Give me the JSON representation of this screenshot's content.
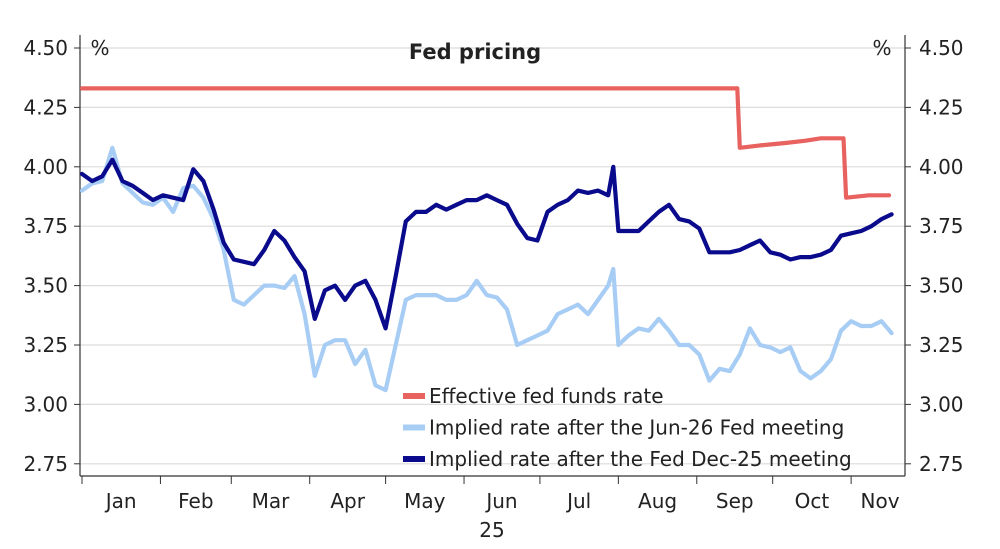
{
  "chart_data": {
    "type": "line",
    "title": "Fed pricing",
    "ylabel_left": "%",
    "ylabel_right": "%",
    "ylim": [
      2.7,
      4.5
    ],
    "yticks": [
      "4.50",
      "4.25",
      "4.00",
      "3.75",
      "3.50",
      "3.25",
      "3.00",
      "2.75"
    ],
    "xlim": [
      "2025-01-01",
      "2025-11-20"
    ],
    "xticks": [
      "Jan",
      "Feb",
      "Mar",
      "Apr",
      "May",
      "Jun",
      "Jul",
      "Aug",
      "Sep",
      "Oct",
      "Nov"
    ],
    "xyear": "25",
    "grid": true,
    "legend_position": "bottom-right",
    "x": [
      "2025-01-01",
      "2025-01-05",
      "2025-01-09",
      "2025-01-13",
      "2025-01-17",
      "2025-01-21",
      "2025-01-25",
      "2025-01-29",
      "2025-02-02",
      "2025-02-06",
      "2025-02-10",
      "2025-02-14",
      "2025-02-18",
      "2025-02-22",
      "2025-02-26",
      "2025-03-02",
      "2025-03-06",
      "2025-03-10",
      "2025-03-14",
      "2025-03-18",
      "2025-03-22",
      "2025-03-26",
      "2025-03-30",
      "2025-04-03",
      "2025-04-07",
      "2025-04-11",
      "2025-04-15",
      "2025-04-19",
      "2025-04-23",
      "2025-04-27",
      "2025-05-01",
      "2025-05-05",
      "2025-05-09",
      "2025-05-13",
      "2025-05-17",
      "2025-05-21",
      "2025-05-25",
      "2025-05-29",
      "2025-06-02",
      "2025-06-06",
      "2025-06-10",
      "2025-06-14",
      "2025-06-18",
      "2025-06-22",
      "2025-06-26",
      "2025-06-30",
      "2025-07-04",
      "2025-07-08",
      "2025-07-12",
      "2025-07-16",
      "2025-07-20",
      "2025-07-24",
      "2025-07-28",
      "2025-07-30",
      "2025-08-01",
      "2025-08-05",
      "2025-08-09",
      "2025-08-13",
      "2025-08-17",
      "2025-08-21",
      "2025-08-25",
      "2025-08-29",
      "2025-09-02",
      "2025-09-06",
      "2025-09-10",
      "2025-09-14",
      "2025-09-18",
      "2025-09-22",
      "2025-09-26",
      "2025-09-30",
      "2025-10-04",
      "2025-10-08",
      "2025-10-12",
      "2025-10-16",
      "2025-10-20",
      "2025-10-24",
      "2025-10-28",
      "2025-11-01",
      "2025-11-05",
      "2025-11-09",
      "2025-11-13",
      "2025-11-17"
    ],
    "series": [
      {
        "name": "Effective fed funds rate",
        "color": "#e8625f",
        "step_points": [
          [
            "2025-01-01",
            4.33
          ],
          [
            "2025-09-17",
            4.33
          ],
          [
            "2025-09-18",
            4.08
          ],
          [
            "2025-09-26",
            4.09
          ],
          [
            "2025-10-06",
            4.1
          ],
          [
            "2025-10-14",
            4.11
          ],
          [
            "2025-10-20",
            4.12
          ],
          [
            "2025-10-29",
            4.12
          ],
          [
            "2025-10-30",
            3.87
          ],
          [
            "2025-11-08",
            3.88
          ],
          [
            "2025-11-16",
            3.88
          ]
        ]
      },
      {
        "name": "Implied rate after the Jun-26 Fed meeting",
        "color": "#a8cdf5",
        "values": [
          3.9,
          3.93,
          3.94,
          4.08,
          3.93,
          3.89,
          3.85,
          3.84,
          3.87,
          3.81,
          3.91,
          3.92,
          3.87,
          3.78,
          3.65,
          3.44,
          3.42,
          3.46,
          3.5,
          3.5,
          3.49,
          3.54,
          3.38,
          3.12,
          3.25,
          3.27,
          3.27,
          3.17,
          3.23,
          3.08,
          3.06,
          3.25,
          3.44,
          3.46,
          3.46,
          3.46,
          3.44,
          3.44,
          3.46,
          3.52,
          3.46,
          3.45,
          3.4,
          3.25,
          3.27,
          3.29,
          3.31,
          3.38,
          3.4,
          3.42,
          3.38,
          3.44,
          3.5,
          3.57,
          3.25,
          3.29,
          3.32,
          3.31,
          3.36,
          3.31,
          3.25,
          3.25,
          3.21,
          3.1,
          3.15,
          3.14,
          3.21,
          3.32,
          3.25,
          3.24,
          3.22,
          3.24,
          3.14,
          3.11,
          3.14,
          3.19,
          3.31,
          3.35,
          3.33,
          3.33,
          3.35,
          3.3
        ]
      },
      {
        "name": "Implied rate after the Fed Dec-25 meeting",
        "color": "#0a0a8c",
        "values": [
          3.97,
          3.94,
          3.96,
          4.03,
          3.94,
          3.92,
          3.89,
          3.86,
          3.88,
          3.87,
          3.86,
          3.99,
          3.94,
          3.82,
          3.68,
          3.61,
          3.6,
          3.59,
          3.65,
          3.73,
          3.69,
          3.62,
          3.56,
          3.36,
          3.48,
          3.5,
          3.44,
          3.5,
          3.52,
          3.44,
          3.32,
          3.54,
          3.77,
          3.81,
          3.81,
          3.84,
          3.82,
          3.84,
          3.86,
          3.86,
          3.88,
          3.86,
          3.84,
          3.76,
          3.7,
          3.69,
          3.81,
          3.84,
          3.86,
          3.9,
          3.89,
          3.9,
          3.88,
          4.0,
          3.73,
          3.73,
          3.73,
          3.77,
          3.81,
          3.84,
          3.78,
          3.77,
          3.74,
          3.64,
          3.64,
          3.64,
          3.65,
          3.67,
          3.69,
          3.64,
          3.63,
          3.61,
          3.62,
          3.62,
          3.63,
          3.65,
          3.71,
          3.72,
          3.73,
          3.75,
          3.78,
          3.8
        ]
      }
    ]
  }
}
